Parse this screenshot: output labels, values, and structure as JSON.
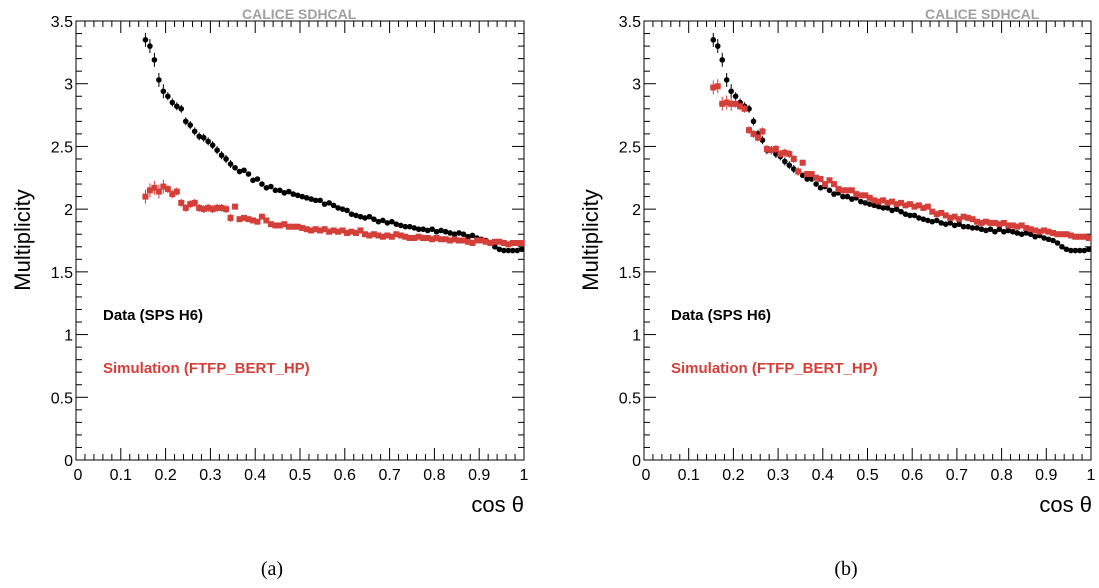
{
  "colors": {
    "data": "#000000",
    "simulation": "#d43f3a",
    "watermark": "#a0a0a0"
  },
  "panels": [
    {
      "caption": "(a)",
      "watermark": "CALICE SDHCAL"
    },
    {
      "caption": "(b)",
      "watermark": "CALICE SDHCAL"
    }
  ],
  "chart_data": [
    {
      "type": "scatter",
      "xlabel": "cos θ",
      "ylabel": "Multiplicity",
      "xlim": [
        0,
        1
      ],
      "ylim": [
        0,
        3.5
      ],
      "x_ticks": [
        "0",
        "0.1",
        "0.2",
        "0.3",
        "0.4",
        "0.5",
        "0.6",
        "0.7",
        "0.8",
        "0.9",
        "1"
      ],
      "y_ticks": [
        "0",
        "0.5",
        "1",
        "1.5",
        "2",
        "2.5",
        "3",
        "3.5"
      ],
      "legend": [
        "Data (SPS H6)",
        "Simulation (FTFP_BERT_HP)"
      ],
      "legend_placement": "middle-left",
      "series": [
        {
          "name": "Data (SPS H6)",
          "marker": "circle",
          "color": "#000000",
          "x": [
            0.155,
            0.165,
            0.175,
            0.185,
            0.195,
            0.205,
            0.215,
            0.225,
            0.235,
            0.245,
            0.255,
            0.265,
            0.275,
            0.285,
            0.295,
            0.305,
            0.315,
            0.325,
            0.335,
            0.345,
            0.355,
            0.365,
            0.375,
            0.385,
            0.395,
            0.405,
            0.415,
            0.425,
            0.435,
            0.445,
            0.455,
            0.465,
            0.475,
            0.485,
            0.495,
            0.505,
            0.515,
            0.525,
            0.535,
            0.545,
            0.555,
            0.565,
            0.575,
            0.585,
            0.595,
            0.605,
            0.615,
            0.625,
            0.635,
            0.645,
            0.655,
            0.665,
            0.675,
            0.685,
            0.695,
            0.705,
            0.715,
            0.725,
            0.735,
            0.745,
            0.755,
            0.765,
            0.775,
            0.785,
            0.795,
            0.805,
            0.815,
            0.825,
            0.835,
            0.845,
            0.855,
            0.865,
            0.875,
            0.885,
            0.895,
            0.905,
            0.915,
            0.925,
            0.935,
            0.945,
            0.955,
            0.965,
            0.975,
            0.985,
            0.995
          ],
          "y": [
            3.35,
            3.3,
            3.19,
            3.03,
            2.94,
            2.9,
            2.85,
            2.82,
            2.8,
            2.7,
            2.67,
            2.62,
            2.58,
            2.57,
            2.54,
            2.51,
            2.47,
            2.43,
            2.4,
            2.36,
            2.33,
            2.3,
            2.31,
            2.28,
            2.23,
            2.24,
            2.2,
            2.17,
            2.18,
            2.15,
            2.15,
            2.13,
            2.14,
            2.12,
            2.11,
            2.1,
            2.09,
            2.08,
            2.07,
            2.07,
            2.04,
            2.05,
            2.03,
            2.01,
            2.0,
            1.99,
            1.96,
            1.95,
            1.94,
            1.93,
            1.94,
            1.92,
            1.9,
            1.91,
            1.89,
            1.9,
            1.88,
            1.87,
            1.86,
            1.86,
            1.85,
            1.84,
            1.84,
            1.83,
            1.84,
            1.82,
            1.83,
            1.82,
            1.81,
            1.8,
            1.81,
            1.8,
            1.78,
            1.79,
            1.77,
            1.76,
            1.75,
            1.73,
            1.7,
            1.68,
            1.67,
            1.67,
            1.67,
            1.67,
            1.68
          ]
        },
        {
          "name": "Simulation (FTFP_BERT_HP)",
          "marker": "square",
          "color": "#d43f3a",
          "x": [
            0.155,
            0.165,
            0.175,
            0.185,
            0.195,
            0.205,
            0.215,
            0.225,
            0.235,
            0.245,
            0.255,
            0.265,
            0.275,
            0.285,
            0.295,
            0.305,
            0.315,
            0.325,
            0.335,
            0.345,
            0.355,
            0.365,
            0.375,
            0.385,
            0.395,
            0.405,
            0.415,
            0.425,
            0.435,
            0.445,
            0.455,
            0.465,
            0.475,
            0.485,
            0.495,
            0.505,
            0.515,
            0.525,
            0.535,
            0.545,
            0.555,
            0.565,
            0.575,
            0.585,
            0.595,
            0.605,
            0.615,
            0.625,
            0.635,
            0.645,
            0.655,
            0.665,
            0.675,
            0.685,
            0.695,
            0.705,
            0.715,
            0.725,
            0.735,
            0.745,
            0.755,
            0.765,
            0.775,
            0.785,
            0.795,
            0.805,
            0.815,
            0.825,
            0.835,
            0.845,
            0.855,
            0.865,
            0.875,
            0.885,
            0.895,
            0.905,
            0.915,
            0.925,
            0.935,
            0.945,
            0.955,
            0.965,
            0.975,
            0.985,
            0.995
          ],
          "y": [
            2.1,
            2.15,
            2.17,
            2.14,
            2.18,
            2.16,
            2.12,
            2.14,
            2.05,
            2.01,
            2.04,
            2.05,
            2.01,
            2.0,
            2.01,
            2.0,
            2.01,
            2.01,
            2.0,
            1.93,
            2.02,
            1.92,
            1.93,
            1.92,
            1.91,
            1.9,
            1.94,
            1.91,
            1.88,
            1.87,
            1.87,
            1.88,
            1.86,
            1.86,
            1.86,
            1.85,
            1.84,
            1.83,
            1.84,
            1.83,
            1.84,
            1.82,
            1.83,
            1.82,
            1.83,
            1.81,
            1.82,
            1.81,
            1.83,
            1.8,
            1.79,
            1.8,
            1.79,
            1.78,
            1.79,
            1.78,
            1.8,
            1.79,
            1.78,
            1.77,
            1.77,
            1.78,
            1.77,
            1.77,
            1.76,
            1.77,
            1.76,
            1.76,
            1.75,
            1.76,
            1.75,
            1.75,
            1.74,
            1.73,
            1.75,
            1.75,
            1.74,
            1.73,
            1.74,
            1.74,
            1.73,
            1.72,
            1.73,
            1.73,
            1.73
          ]
        }
      ]
    },
    {
      "type": "scatter",
      "xlabel": "cos θ",
      "ylabel": "Multiplicity",
      "xlim": [
        0,
        1
      ],
      "ylim": [
        0,
        3.5
      ],
      "x_ticks": [
        "0",
        "0.1",
        "0.2",
        "0.3",
        "0.4",
        "0.5",
        "0.6",
        "0.7",
        "0.8",
        "0.9",
        "1"
      ],
      "y_ticks": [
        "0",
        "0.5",
        "1",
        "1.5",
        "2",
        "2.5",
        "3",
        "3.5"
      ],
      "legend": [
        "Data (SPS H6)",
        "Simulation (FTFP_BERT_HP)"
      ],
      "legend_placement": "middle-left",
      "series": [
        {
          "name": "Data (SPS H6)",
          "marker": "circle",
          "color": "#000000",
          "x": [
            0.155,
            0.165,
            0.175,
            0.185,
            0.195,
            0.205,
            0.215,
            0.225,
            0.235,
            0.245,
            0.255,
            0.265,
            0.275,
            0.285,
            0.295,
            0.305,
            0.315,
            0.325,
            0.335,
            0.345,
            0.355,
            0.365,
            0.375,
            0.385,
            0.395,
            0.405,
            0.415,
            0.425,
            0.435,
            0.445,
            0.455,
            0.465,
            0.475,
            0.485,
            0.495,
            0.505,
            0.515,
            0.525,
            0.535,
            0.545,
            0.555,
            0.565,
            0.575,
            0.585,
            0.595,
            0.605,
            0.615,
            0.625,
            0.635,
            0.645,
            0.655,
            0.665,
            0.675,
            0.685,
            0.695,
            0.705,
            0.715,
            0.725,
            0.735,
            0.745,
            0.755,
            0.765,
            0.775,
            0.785,
            0.795,
            0.805,
            0.815,
            0.825,
            0.835,
            0.845,
            0.855,
            0.865,
            0.875,
            0.885,
            0.895,
            0.905,
            0.915,
            0.925,
            0.935,
            0.945,
            0.955,
            0.965,
            0.975,
            0.985,
            0.995
          ],
          "y": [
            3.35,
            3.3,
            3.19,
            3.03,
            2.94,
            2.9,
            2.85,
            2.82,
            2.8,
            2.7,
            2.6,
            2.55,
            2.47,
            2.47,
            2.44,
            2.42,
            2.38,
            2.35,
            2.32,
            2.3,
            2.27,
            2.24,
            2.24,
            2.2,
            2.17,
            2.18,
            2.15,
            2.12,
            2.13,
            2.1,
            2.1,
            2.08,
            2.09,
            2.06,
            2.05,
            2.04,
            2.03,
            2.02,
            2.01,
            2.01,
            1.99,
            2.0,
            1.98,
            1.96,
            1.95,
            1.95,
            1.93,
            1.92,
            1.91,
            1.9,
            1.91,
            1.89,
            1.88,
            1.89,
            1.87,
            1.88,
            1.86,
            1.86,
            1.85,
            1.85,
            1.84,
            1.83,
            1.84,
            1.82,
            1.84,
            1.82,
            1.83,
            1.82,
            1.81,
            1.8,
            1.81,
            1.8,
            1.78,
            1.79,
            1.77,
            1.76,
            1.75,
            1.73,
            1.7,
            1.68,
            1.67,
            1.67,
            1.67,
            1.67,
            1.68
          ]
        },
        {
          "name": "Simulation (FTFP_BERT_HP)",
          "marker": "square",
          "color": "#d43f3a",
          "x": [
            0.155,
            0.165,
            0.175,
            0.185,
            0.195,
            0.205,
            0.215,
            0.225,
            0.235,
            0.245,
            0.255,
            0.265,
            0.275,
            0.285,
            0.295,
            0.305,
            0.315,
            0.325,
            0.335,
            0.345,
            0.355,
            0.365,
            0.375,
            0.385,
            0.395,
            0.405,
            0.415,
            0.425,
            0.435,
            0.445,
            0.455,
            0.465,
            0.475,
            0.485,
            0.495,
            0.505,
            0.515,
            0.525,
            0.535,
            0.545,
            0.555,
            0.565,
            0.575,
            0.585,
            0.595,
            0.605,
            0.615,
            0.625,
            0.635,
            0.645,
            0.655,
            0.665,
            0.675,
            0.685,
            0.695,
            0.705,
            0.715,
            0.725,
            0.735,
            0.745,
            0.755,
            0.765,
            0.775,
            0.785,
            0.795,
            0.805,
            0.815,
            0.825,
            0.835,
            0.845,
            0.855,
            0.865,
            0.875,
            0.885,
            0.895,
            0.905,
            0.915,
            0.925,
            0.935,
            0.945,
            0.955,
            0.965,
            0.975,
            0.985,
            0.995
          ],
          "y": [
            2.97,
            2.98,
            2.84,
            2.85,
            2.84,
            2.84,
            2.82,
            2.8,
            2.63,
            2.6,
            2.57,
            2.62,
            2.48,
            2.47,
            2.48,
            2.44,
            2.45,
            2.44,
            2.4,
            2.3,
            2.37,
            2.28,
            2.28,
            2.25,
            2.24,
            2.2,
            2.23,
            2.2,
            2.16,
            2.15,
            2.15,
            2.15,
            2.12,
            2.11,
            2.11,
            2.09,
            2.07,
            2.06,
            2.07,
            2.05,
            2.06,
            2.04,
            2.05,
            2.03,
            2.04,
            2.02,
            2.03,
            2.01,
            2.02,
            1.98,
            1.96,
            1.97,
            1.95,
            1.93,
            1.94,
            1.92,
            1.94,
            1.93,
            1.92,
            1.9,
            1.89,
            1.9,
            1.89,
            1.89,
            1.88,
            1.89,
            1.87,
            1.87,
            1.86,
            1.87,
            1.85,
            1.84,
            1.83,
            1.82,
            1.83,
            1.82,
            1.81,
            1.8,
            1.8,
            1.8,
            1.79,
            1.78,
            1.78,
            1.78,
            1.77
          ]
        }
      ]
    }
  ]
}
